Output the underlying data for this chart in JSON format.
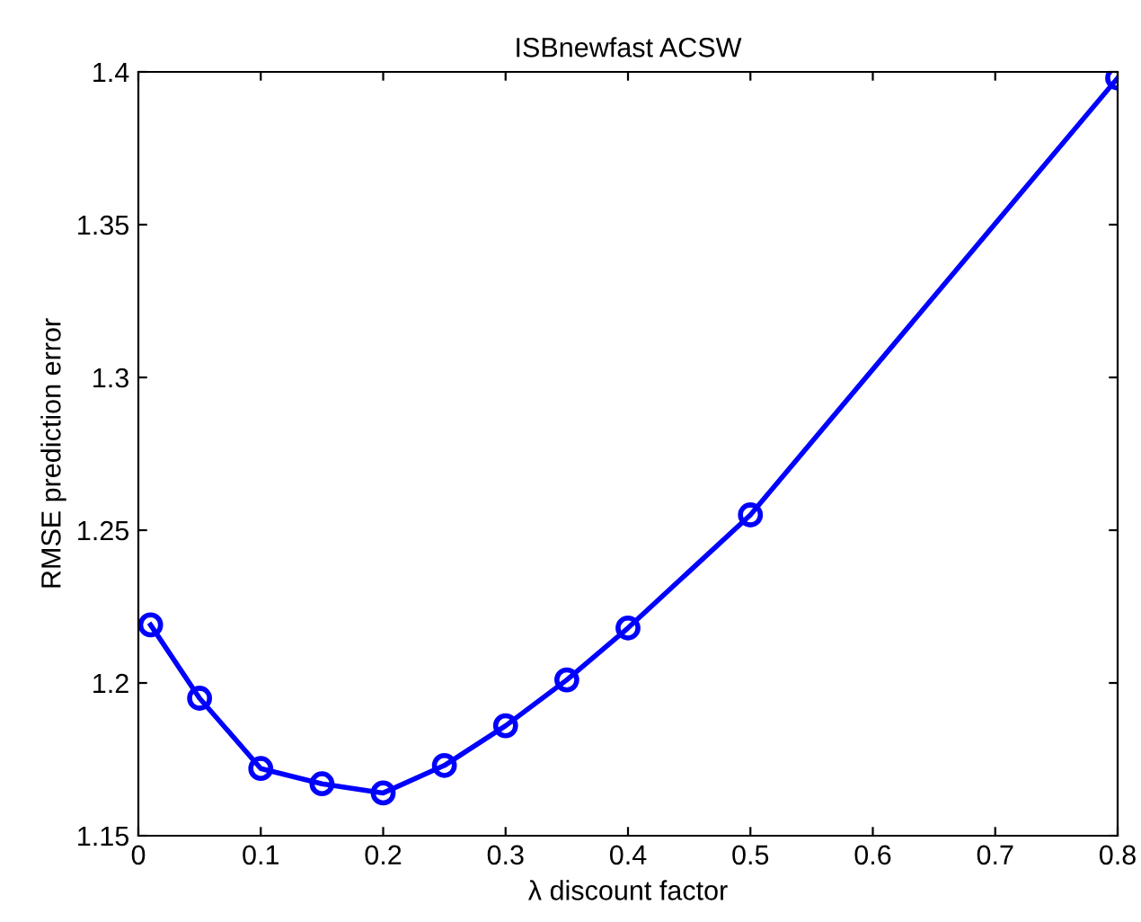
{
  "chart_data": {
    "type": "line",
    "title": "ISBnewfast ACSW",
    "xlabel": "λ discount factor",
    "ylabel": "RMSE prediction error",
    "x": [
      0.01,
      0.05,
      0.1,
      0.15,
      0.2,
      0.25,
      0.3,
      0.35,
      0.4,
      0.5,
      0.8
    ],
    "series": [
      {
        "color": "#0000ff",
        "values": [
          1.219,
          1.195,
          1.172,
          1.167,
          1.164,
          1.173,
          1.186,
          1.201,
          1.218,
          1.255,
          1.398
        ]
      }
    ],
    "xlim": [
      0,
      0.8
    ],
    "xticks": [
      0,
      0.1,
      0.2,
      0.3,
      0.4,
      0.5,
      0.6,
      0.7,
      0.8
    ],
    "ylim": [
      1.15,
      1.4
    ],
    "yticks": [
      1.15,
      1.2,
      1.25,
      1.3,
      1.35,
      1.4
    ],
    "marker": "circle",
    "line_style": "solid",
    "grid": false,
    "legend": false
  }
}
